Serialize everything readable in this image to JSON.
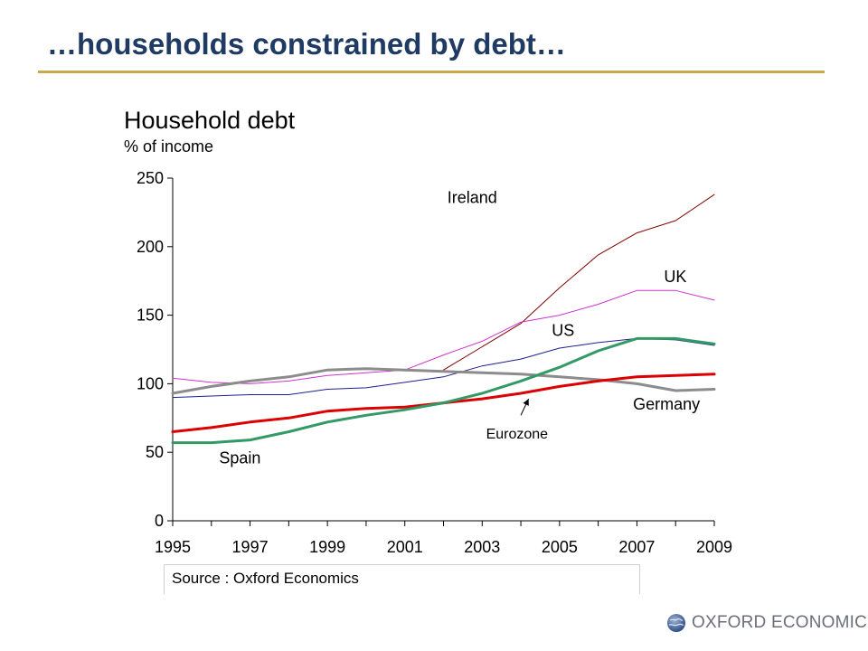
{
  "slide": {
    "title": "…households constrained by debt…",
    "rule_color": "#c9a94a",
    "title_color": "#1f3b64"
  },
  "chart_data": {
    "type": "line",
    "title": "Household debt",
    "subtitle": "% of income",
    "xlabel": "",
    "ylabel": "",
    "xlim": [
      1995,
      2009
    ],
    "ylim": [
      0,
      250
    ],
    "x_ticks": [
      1995,
      1997,
      1999,
      2001,
      2003,
      2005,
      2007,
      2009
    ],
    "y_ticks": [
      0,
      50,
      100,
      150,
      200,
      250
    ],
    "grid": false,
    "legend": "inline labels",
    "x": [
      1995,
      1996,
      1997,
      1998,
      1999,
      2000,
      2001,
      2002,
      2003,
      2004,
      2005,
      2006,
      2007,
      2008,
      2009
    ],
    "series": [
      {
        "name": "Ireland",
        "color": "#800000",
        "width": 1,
        "x": [
          2002,
          2003,
          2004,
          2005,
          2006,
          2007,
          2008,
          2009
        ],
        "values": [
          110,
          127,
          144,
          170,
          194,
          210,
          219,
          238
        ]
      },
      {
        "name": "UK",
        "color": "#cc33cc",
        "width": 1,
        "values": [
          104,
          101,
          100,
          102,
          106,
          108,
          110,
          121,
          131,
          145,
          150,
          158,
          168,
          168,
          161
        ]
      },
      {
        "name": "US",
        "color": "#1f1f8f",
        "width": 1,
        "values": [
          90,
          91,
          92,
          92,
          96,
          97,
          101,
          105,
          113,
          118,
          126,
          130,
          133,
          132,
          128
        ]
      },
      {
        "name": "Germany",
        "color": "#8c8c8c",
        "width": 3,
        "values": [
          93,
          98,
          102,
          105,
          110,
          111,
          110,
          109,
          108,
          107,
          105,
          103,
          100,
          95,
          96
        ]
      },
      {
        "name": "Eurozone",
        "color": "#dd0000",
        "width": 3,
        "values": [
          65,
          68,
          72,
          75,
          80,
          82,
          83,
          86,
          89,
          93,
          98,
          102,
          105,
          106,
          107
        ]
      },
      {
        "name": "Spain",
        "color": "#339966",
        "width": 3,
        "values": [
          57,
          57,
          59,
          65,
          72,
          77,
          81,
          86,
          93,
          102,
          112,
          124,
          133,
          133,
          129
        ]
      }
    ],
    "labels": [
      {
        "text": "Ireland",
        "x": 2002.1,
        "y": 232
      },
      {
        "text": "UK",
        "x": 2007.7,
        "y": 174
      },
      {
        "text": "US",
        "x": 2004.8,
        "y": 135
      },
      {
        "text": "Germany",
        "x": 2006.9,
        "y": 81
      },
      {
        "text": "Eurozone",
        "x": 2003.1,
        "y": 60
      },
      {
        "text": "Spain",
        "x": 1996.2,
        "y": 42
      }
    ],
    "annotations": [
      {
        "type": "arrow",
        "label": "Eurozone",
        "from": [
          2004.0,
          77
        ],
        "to": [
          2004.2,
          89
        ]
      }
    ]
  },
  "source": {
    "text": "Source : Oxford Economics"
  },
  "brand": {
    "text": "OXFORD ECONOMICS",
    "icon": "globe-icon"
  }
}
